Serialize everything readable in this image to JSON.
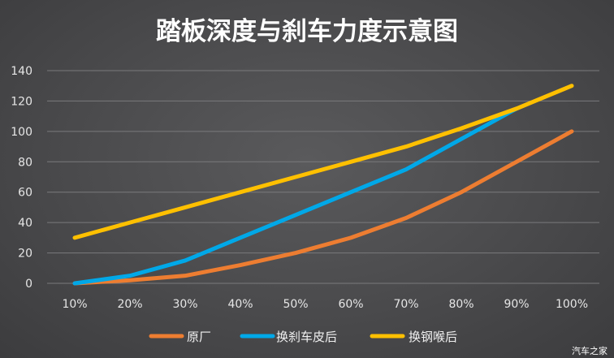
{
  "chart_data": {
    "type": "line",
    "title": "踏板深度与刹车力度示意图",
    "xlabel": "",
    "ylabel": "",
    "categories": [
      "10%",
      "20%",
      "30%",
      "40%",
      "50%",
      "60%",
      "70%",
      "80%",
      "90%",
      "100%"
    ],
    "ylim": [
      0,
      140
    ],
    "yticks": [
      0,
      20,
      40,
      60,
      80,
      100,
      120,
      140
    ],
    "grid": "horizontal",
    "legend_position": "bottom",
    "series": [
      {
        "name": "原厂",
        "color": "#ED7D31",
        "values": [
          0,
          2,
          5,
          12,
          20,
          30,
          43,
          60,
          80,
          100
        ]
      },
      {
        "name": "换刹车皮后",
        "color": "#00A8E8",
        "values": [
          0,
          5,
          15,
          30,
          45,
          60,
          75,
          95,
          115,
          null
        ]
      },
      {
        "name": "换钢喉后",
        "color": "#FFC000",
        "values": [
          30,
          40,
          50,
          60,
          70,
          80,
          90,
          102,
          115,
          130
        ]
      }
    ]
  },
  "watermark": "汽车之家"
}
